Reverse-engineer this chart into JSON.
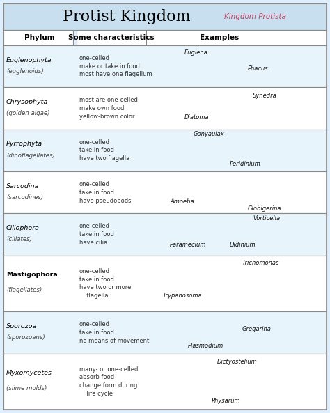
{
  "title": "Protist Kingdom",
  "subtitle": "Kingdom Protista",
  "col_headers": [
    "Phylum",
    "Some characteristics",
    "Examples"
  ],
  "rows": [
    {
      "phylum": "Euglenophyta",
      "subname": "(euglenoids)",
      "characteristics": "one-celled\nmake or take in food\nmost have one flagellum",
      "examples": [
        "Euglena",
        "Phacus"
      ],
      "bold_phylum": false
    },
    {
      "phylum": "Chrysophyta",
      "subname": "(golden algae)",
      "characteristics": "most are one-celled\nmake own food\nyellow-brown color",
      "examples": [
        "Diatoma",
        "Synedra"
      ],
      "bold_phylum": false
    },
    {
      "phylum": "Pyrrophyta",
      "subname": "(dinoflagellates)",
      "characteristics": "one-celled\ntake in food\nhave two flagella",
      "examples": [
        "Gonyaulax",
        "Peridinium"
      ],
      "bold_phylum": false
    },
    {
      "phylum": "Sarcodina",
      "subname": "(sarcodines)",
      "characteristics": "one-celled\ntake in food\nhave pseudopods",
      "examples": [
        "Amoeba",
        "Globigerina"
      ],
      "bold_phylum": false
    },
    {
      "phylum": "Ciliophora",
      "subname": "(ciliates)",
      "characteristics": "one-celled\ntake in food\nhave cilia",
      "examples": [
        "Paramecium",
        "Didinium",
        "Vorticella"
      ],
      "bold_phylum": false
    },
    {
      "phylum": "Mastigophora",
      "subname": "(flagellates)",
      "characteristics": "one-celled\ntake in food\nhave two or more\n    flagella",
      "examples": [
        "Trypanosoma",
        "Trichomonas"
      ],
      "bold_phylum": true
    },
    {
      "phylum": "Sporozoa",
      "subname": "(sporozoans)",
      "characteristics": "one-celled\ntake in food\nno means of movement",
      "examples": [
        "Plasmodium",
        "Gregarina"
      ],
      "bold_phylum": false
    },
    {
      "phylum": "Myxomycetes",
      "subname": "(slime molds)",
      "characteristics": "many- or one-celled\nabsorb food\nchange form during\n    life cycle",
      "examples": [
        "Dictyostelium",
        "Physarum"
      ],
      "bold_phylum": false
    }
  ],
  "header_bg": "#c8dff0",
  "row_bg_light": "#e8f4fb",
  "row_bg_white": "#ffffff",
  "border_color": "#888888",
  "title_color": "#000000",
  "subtitle_color": "#c04060",
  "header_text_color": "#000000",
  "phylum_text_color": "#000000",
  "char_text_color": "#333333",
  "example_text_color": "#111111"
}
